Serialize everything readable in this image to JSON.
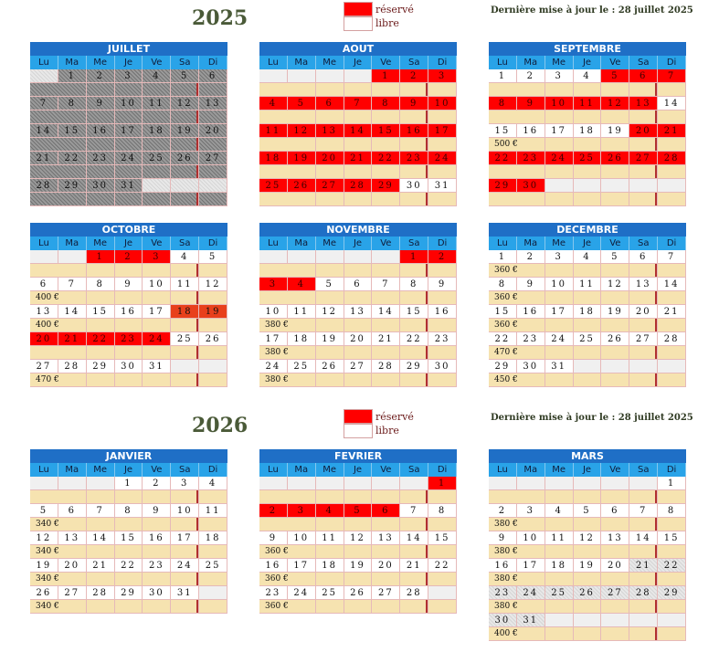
{
  "header_2025": {
    "year": "2025",
    "legend_reserved": "réservé",
    "legend_free": "libre",
    "update": "Dernière mise à jour le : 28 juillet 2025"
  },
  "header_2026": {
    "year": "2026",
    "legend_reserved": "réservé",
    "legend_free": "libre",
    "update": "Dernière mise à jour le : 28 juillet 2025"
  },
  "colors": {
    "reserved": "#ff0000",
    "free": "#ffffff",
    "header": "#1f6fc6",
    "days": "#29a3e8",
    "price": "#f6e3b0"
  },
  "weekdays": [
    "Lu",
    "Ma",
    "Me",
    "Je",
    "Ve",
    "Sa",
    "Di"
  ],
  "months": [
    {
      "title": "JUILLET",
      "days": 31,
      "start": 1,
      "reserved": [],
      "past": [
        1,
        2,
        3,
        4,
        5,
        6,
        7,
        8,
        9,
        10,
        11,
        12,
        13,
        14,
        15,
        16,
        17,
        18,
        19,
        20,
        21,
        22,
        23,
        24,
        25,
        26,
        27,
        28,
        29,
        30,
        31
      ],
      "prices": []
    },
    {
      "title": "AOUT",
      "days": 31,
      "start": 4,
      "reserved": [
        1,
        2,
        3,
        4,
        5,
        6,
        7,
        8,
        9,
        10,
        11,
        12,
        13,
        14,
        15,
        16,
        17,
        18,
        19,
        20,
        21,
        22,
        23,
        24,
        25,
        26,
        27,
        28,
        29
      ],
      "past": [],
      "prices": []
    },
    {
      "title": "SEPTEMBRE",
      "days": 30,
      "start": 0,
      "reserved": [
        5,
        6,
        7,
        8,
        9,
        10,
        11,
        12,
        13,
        20,
        21,
        22,
        23,
        24,
        25,
        26,
        27,
        28,
        29,
        30
      ],
      "past": [],
      "prices": [
        "",
        "",
        "500 €",
        "",
        ""
      ]
    },
    {
      "title": "OCTOBRE",
      "days": 31,
      "start": 2,
      "reserved": [
        1,
        2,
        3,
        20,
        21,
        22,
        23,
        24
      ],
      "orange": [
        18,
        19
      ],
      "past": [],
      "prices": [
        "",
        "400 €",
        "400 €",
        "",
        "470 €"
      ]
    },
    {
      "title": "NOVEMBRE",
      "days": 30,
      "start": 5,
      "reserved": [
        1,
        2,
        3,
        4
      ],
      "past": [],
      "prices": [
        "",
        "",
        "380 €",
        "380 €",
        "380 €"
      ]
    },
    {
      "title": "DECEMBRE",
      "days": 31,
      "start": 0,
      "reserved": [],
      "past": [],
      "prices": [
        "360 €",
        "360 €",
        "360 €",
        "470 €",
        "450 €"
      ]
    },
    {
      "title": "JANVIER",
      "days": 31,
      "start": 3,
      "reserved": [],
      "past": [],
      "prices": [
        "",
        "340 €",
        "340 €",
        "340 €",
        "340 €"
      ]
    },
    {
      "title": "FEVRIER",
      "days": 28,
      "start": 6,
      "reserved": [
        1,
        2,
        3,
        4,
        5,
        6
      ],
      "past": [],
      "prices": [
        "",
        "",
        "360 €",
        "360 €",
        "360 €"
      ]
    },
    {
      "title": "MARS",
      "days": 31,
      "start": 6,
      "reserved": [],
      "past": [],
      "pastlight": [
        21,
        22,
        23,
        24,
        25,
        26,
        27,
        28,
        29,
        30,
        31
      ],
      "prices": [
        "",
        "380 €",
        "380 €",
        "380 €",
        "380 €",
        "400 €"
      ]
    }
  ]
}
